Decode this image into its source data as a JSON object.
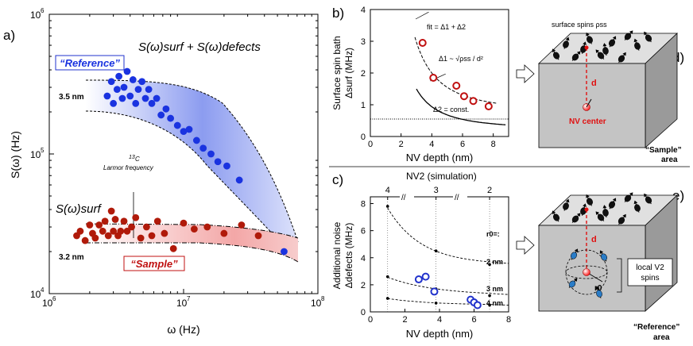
{
  "panel_labels": {
    "a": "a)",
    "b": "b)",
    "c": "c)",
    "d": "d)",
    "e": "e)"
  },
  "panel_a": {
    "ylabel": "S(ω)  (Hz)",
    "xlabel": "ω (Hz)",
    "xticks": [
      {
        "label": "10",
        "exp": "6"
      },
      {
        "label": "10",
        "exp": "7"
      },
      {
        "label": "10",
        "exp": "8"
      }
    ],
    "yticks": [
      {
        "label": "10",
        "exp": "4"
      },
      {
        "label": "10",
        "exp": "5"
      },
      {
        "label": "10",
        "exp": "6"
      }
    ],
    "curve_top_label": "S(ω)surf + S(ω)defects",
    "curve_bottom_label": "S(ω)surf",
    "reference_label": "“Reference”",
    "sample_label": "“Sample”",
    "depth_ref": "3.5 nm",
    "depth_sample": "3.2 nm",
    "annotation_iso": "13",
    "annotation_c": "C",
    "annotation_line2": "Larmor frequency"
  },
  "panel_b": {
    "ylabel": "Δsurf (MHz)",
    "ylabel_prefix": "Surface spin bath",
    "xlabel": "NV depth (nm)",
    "xticks": [
      "0",
      "2",
      "4",
      "6",
      "8"
    ],
    "yticks": [
      "0",
      "1",
      "2",
      "3",
      "4"
    ],
    "fit_label": "fit = Δ1 + Δ2",
    "delta1_label": "Δ1 ~ √ρss / d²",
    "delta2_label": "Δ2 = const."
  },
  "panel_c": {
    "ylabel_prefix": "Additional noise",
    "ylabel": "Δdefects (MHz)",
    "xlabel": "NV depth (nm)",
    "top_axis_label": "NV2 (simulation)",
    "top_ticks": [
      "4",
      "3",
      "2"
    ],
    "xticks": [
      "0",
      "2",
      "4",
      "6",
      "8"
    ],
    "yticks": [
      "0",
      "2",
      "4",
      "6",
      "8"
    ],
    "r0_label": "r0=:",
    "r0_values": [
      "2 nm",
      "3 nm",
      "4 nm"
    ]
  },
  "panel_d": {
    "surface_label": "surface spins ρss",
    "d_label": "d",
    "nv_label": "NV  center",
    "area_label": "“Sample”",
    "area_word": "area"
  },
  "panel_e": {
    "d_label": "d",
    "local_label_1": "local V2",
    "local_label_2": "spins",
    "r0_label": "r0",
    "area_label": "“Reference”",
    "area_word": "area"
  },
  "chart_data": [
    {
      "type": "scatter",
      "title": "a)",
      "xlabel": "ω (Hz)",
      "ylabel": "S(ω) (Hz)",
      "xscale": "log",
      "yscale": "log",
      "xlim": [
        1000000.0,
        100000000.0
      ],
      "ylim": [
        10000.0,
        1000000.0
      ],
      "series": [
        {
          "name": "Reference (3.5 nm)",
          "color": "#1a33e0",
          "x": [
            2700000.0,
            2900000.0,
            3000000.0,
            3200000.0,
            3300000.0,
            3500000.0,
            3600000.0,
            3800000.0,
            4000000.0,
            4200000.0,
            4400000.0,
            4600000.0,
            4900000.0,
            5200000.0,
            5500000.0,
            5800000.0,
            6300000.0,
            6800000.0,
            7400000.0,
            8000000.0,
            9000000.0,
            10000000.0,
            11000000.0,
            12500000.0,
            14000000.0,
            16000000.0,
            18000000.0,
            21000000.0,
            26000000.0,
            56000000.0
          ],
          "y": [
            260000.0,
            330000.0,
            230000.0,
            290000.0,
            360000.0,
            250000.0,
            300000.0,
            390000.0,
            260000.0,
            340000.0,
            230000.0,
            290000.0,
            330000.0,
            250000.0,
            290000.0,
            230000.0,
            250000.0,
            190000.0,
            210000.0,
            180000.0,
            160000.0,
            145000.0,
            150000.0,
            125000.0,
            110000.0,
            100000.0,
            88000.0,
            82000.0,
            65000.0,
            20000.0
          ]
        },
        {
          "name": "Sample (3.2 nm)",
          "color": "#b01a0a",
          "x": [
            1600000.0,
            1700000.0,
            1850000.0,
            2000000.0,
            2100000.0,
            2200000.0,
            2350000.0,
            2500000.0,
            2600000.0,
            2750000.0,
            2900000.0,
            3000000.0,
            3100000.0,
            3250000.0,
            3400000.0,
            3600000.0,
            3800000.0,
            4100000.0,
            4400000.0,
            4800000.0,
            5300000.0,
            5800000.0,
            6400000.0,
            7200000.0,
            8400000.0,
            10000000.0,
            12000000.0,
            15000000.0,
            20000000.0,
            27000000.0,
            36000000.0
          ],
          "y": [
            26000.0,
            28000.0,
            24000.0,
            31000.0,
            27000.0,
            25000.0,
            31000.0,
            28000.0,
            33000.0,
            26000.0,
            39000.0,
            28000.0,
            34000.0,
            26000.0,
            28000.0,
            33000.0,
            28000.0,
            30000.0,
            35000.0,
            25000.0,
            30000.0,
            26000.0,
            33000.0,
            27000.0,
            21000.0,
            32000.0,
            29000.0,
            30000.0,
            27000.0,
            31000.0,
            26000.0
          ]
        }
      ]
    },
    {
      "type": "scatter",
      "title": "b)",
      "xlabel": "NV depth (nm)",
      "ylabel": "Δsurf (MHz)",
      "xlim": [
        0,
        9
      ],
      "ylim": [
        0,
        4
      ],
      "series": [
        {
          "name": "data",
          "x": [
            3.4,
            4.1,
            5.6,
            6.1,
            6.7,
            7.7
          ],
          "y": [
            2.95,
            1.85,
            1.6,
            1.27,
            1.12,
            0.95
          ]
        }
      ],
      "constant_line": 0.55
    },
    {
      "type": "scatter",
      "title": "c)",
      "xlabel": "NV depth (nm)",
      "ylabel": "Δdefects (MHz)",
      "xlim": [
        0,
        8
      ],
      "ylim": [
        0,
        8.5
      ],
      "top_axis": {
        "label": "NV2 (simulation)",
        "ticks": [
          "4",
          "3",
          "2"
        ],
        "positions": [
          1,
          3.8,
          6.9
        ]
      },
      "series": [
        {
          "name": "data",
          "x": [
            2.8,
            3.2,
            3.7,
            5.8,
            6.0,
            6.2
          ],
          "y": [
            2.4,
            2.6,
            1.5,
            0.9,
            0.7,
            0.5
          ]
        },
        {
          "name": "r0 = 2 nm",
          "x": [
            1,
            3.8,
            6.9
          ],
          "y": [
            7.8,
            4.5,
            3.5
          ]
        },
        {
          "name": "r0 = 3 nm",
          "x": [
            1,
            3.8,
            6.9
          ],
          "y": [
            2.6,
            1.7,
            1.2
          ]
        },
        {
          "name": "r0 = 4 nm",
          "x": [
            1,
            3.8,
            6.9
          ],
          "y": [
            1.0,
            0.65,
            0.5
          ]
        }
      ]
    }
  ]
}
